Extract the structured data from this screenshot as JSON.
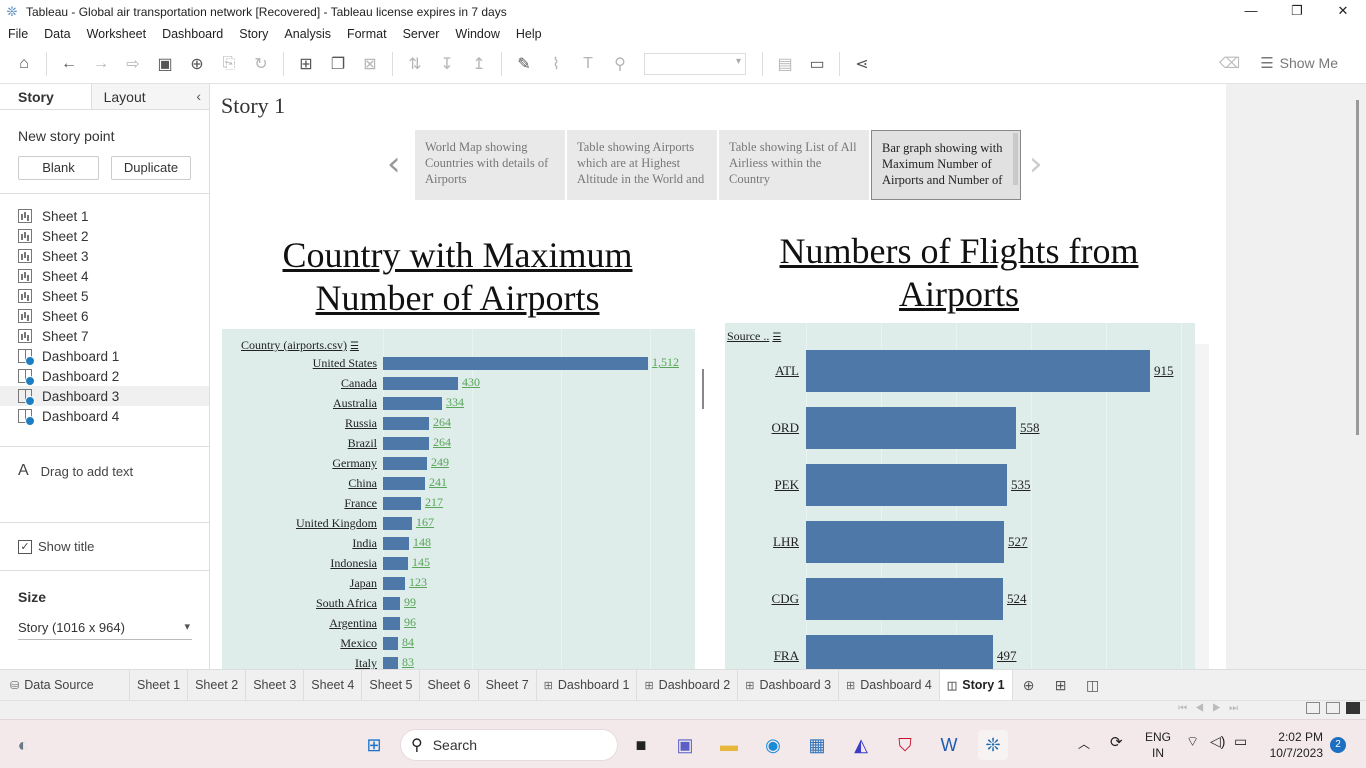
{
  "window": {
    "title": "Tableau - Global air transportation network [Recovered] - Tableau license expires in 7 days",
    "controls": [
      "—",
      "❐",
      "✕"
    ]
  },
  "menu": [
    "File",
    "Data",
    "Worksheet",
    "Dashboard",
    "Story",
    "Analysis",
    "Format",
    "Server",
    "Window",
    "Help"
  ],
  "toolbar": {
    "show_me": "Show Me"
  },
  "left_pane": {
    "tabs": {
      "story": "Story",
      "layout": "Layout"
    },
    "new_story_point": "New story point",
    "blank": "Blank",
    "duplicate": "Duplicate",
    "sheets": [
      {
        "label": "Sheet 1",
        "type": "worksheet"
      },
      {
        "label": "Sheet 2",
        "type": "worksheet"
      },
      {
        "label": "Sheet 3",
        "type": "worksheet"
      },
      {
        "label": "Sheet 4",
        "type": "worksheet"
      },
      {
        "label": "Sheet 5",
        "type": "worksheet"
      },
      {
        "label": "Sheet 6",
        "type": "worksheet"
      },
      {
        "label": "Sheet 7",
        "type": "worksheet"
      },
      {
        "label": "Dashboard 1",
        "type": "dashboard"
      },
      {
        "label": "Dashboard 2",
        "type": "dashboard"
      },
      {
        "label": "Dashboard 3",
        "type": "dashboard"
      },
      {
        "label": "Dashboard 4",
        "type": "dashboard"
      }
    ],
    "drag_text": "Drag to add text",
    "show_title": "Show title",
    "show_title_checked": true,
    "size_header": "Size",
    "size_value": "Story (1016 x 964)"
  },
  "story": {
    "title": "Story 1",
    "points": [
      "World Map showing Countries with details of Airports",
      "Table showing Airports which are at Highest Altitude in the World and",
      "Table showing List of All Airliess within the Country",
      "Bar graph showing with Maximum Number of Airports and Number of"
    ],
    "active_point": 3
  },
  "chart_data": [
    {
      "type": "bar",
      "orientation": "horizontal",
      "title": "Country with Maximum Number of Airports",
      "ylabel": "Country (airports.csv)",
      "categories": [
        "United States",
        "Canada",
        "Australia",
        "Russia",
        "Brazil",
        "Germany",
        "China",
        "France",
        "United Kingdom",
        "India",
        "Indonesia",
        "Japan",
        "South Africa",
        "Argentina",
        "Mexico",
        "Italy"
      ],
      "values": [
        1512,
        430,
        334,
        264,
        264,
        249,
        241,
        217,
        167,
        148,
        145,
        123,
        99,
        96,
        84,
        83
      ],
      "labels": [
        "1,512",
        "430",
        "334",
        "264",
        "264",
        "249",
        "241",
        "217",
        "167",
        "148",
        "145",
        "123",
        "99",
        "96",
        "84",
        "83"
      ],
      "xlim": [
        0,
        1700
      ],
      "bar_color": "#4e78a8",
      "label_color": "#5aa55a",
      "background": "#deecea"
    },
    {
      "type": "bar",
      "orientation": "horizontal",
      "title": "Numbers of Flights from Airports",
      "ylabel": "Source ..",
      "categories": [
        "ATL",
        "ORD",
        "PEK",
        "LHR",
        "CDG",
        "FRA"
      ],
      "values": [
        915,
        558,
        535,
        527,
        524,
        497
      ],
      "labels": [
        "915",
        "558",
        "535",
        "527",
        "524",
        "497"
      ],
      "xlim": [
        0,
        1000
      ],
      "bar_color": "#4e78a8",
      "label_color": "#222222",
      "background": "#deecea"
    }
  ],
  "bottom_tabs": [
    {
      "label": "Data Source",
      "icon": "database-icon"
    },
    {
      "label": "Sheet 1",
      "icon": ""
    },
    {
      "label": "Sheet 2",
      "icon": ""
    },
    {
      "label": "Sheet 3",
      "icon": ""
    },
    {
      "label": "Sheet 4",
      "icon": ""
    },
    {
      "label": "Sheet 5",
      "icon": ""
    },
    {
      "label": "Sheet 6",
      "icon": ""
    },
    {
      "label": "Sheet 7",
      "icon": ""
    },
    {
      "label": "Dashboard 1",
      "icon": "dashboard-icon"
    },
    {
      "label": "Dashboard 2",
      "icon": "dashboard-icon"
    },
    {
      "label": "Dashboard 3",
      "icon": "dashboard-icon"
    },
    {
      "label": "Dashboard 4",
      "icon": "dashboard-icon"
    },
    {
      "label": "Story 1",
      "icon": "story-icon",
      "active": true
    }
  ],
  "taskbar": {
    "search": "Search",
    "lang": "ENG",
    "region": "IN",
    "time": "2:02 PM",
    "date": "10/7/2023",
    "notifications": "2"
  }
}
